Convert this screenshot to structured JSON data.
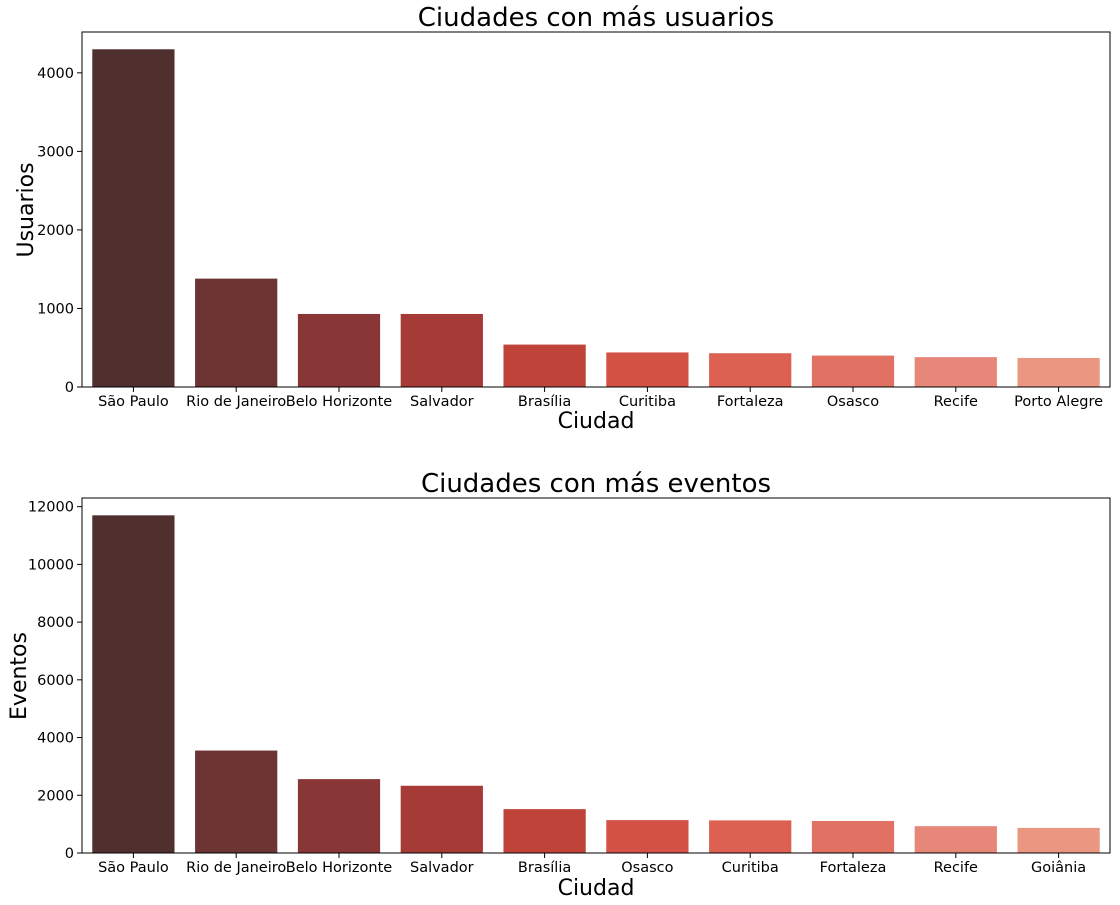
{
  "colors": [
    "#50302f",
    "#6c3432",
    "#893736",
    "#a53a36",
    "#c04339",
    "#d35245",
    "#dd6152",
    "#e17263",
    "#e6877a",
    "#ea9782"
  ],
  "chart_data": [
    {
      "type": "bar",
      "title": "Ciudades con más usuarios",
      "xlabel": "Ciudad",
      "ylabel": "Usuarios",
      "categories": [
        "São Paulo",
        "Rio de Janeiro",
        "Belo Horizonte",
        "Salvador",
        "Brasília",
        "Curitiba",
        "Fortaleza",
        "Osasco",
        "Recife",
        "Porto Alegre"
      ],
      "values": [
        4300,
        1380,
        930,
        930,
        540,
        440,
        430,
        400,
        380,
        370
      ],
      "ylim": [
        0,
        4520
      ],
      "yticks": [
        0,
        1000,
        2000,
        3000,
        4000
      ],
      "grid": false,
      "legend": "none"
    },
    {
      "type": "bar",
      "title": "Ciudades con más eventos",
      "xlabel": "Ciudad",
      "ylabel": "Eventos",
      "categories": [
        "São Paulo",
        "Rio de Janeiro",
        "Belo Horizonte",
        "Salvador",
        "Brasília",
        "Osasco",
        "Curitiba",
        "Fortaleza",
        "Recife",
        "Goiânia"
      ],
      "values": [
        11700,
        3550,
        2560,
        2330,
        1520,
        1140,
        1130,
        1110,
        930,
        870
      ],
      "ylim": [
        0,
        12300
      ],
      "yticks": [
        0,
        2000,
        4000,
        6000,
        8000,
        10000,
        12000
      ],
      "grid": false,
      "legend": "none"
    }
  ]
}
